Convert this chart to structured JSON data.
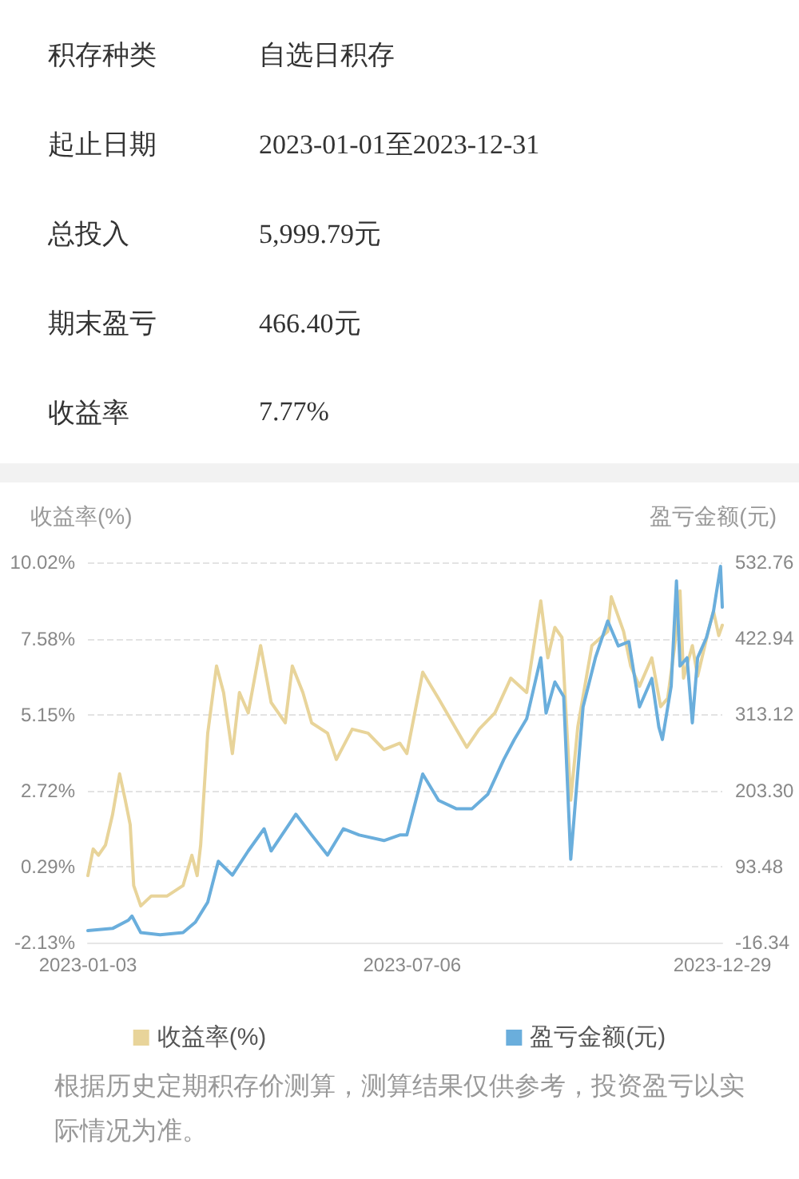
{
  "chart_data": [
    {
      "type": "other",
      "annotations": [
        "积存种类",
        "自选日积存",
        "起止日期",
        "2023-01-01至2023-12-31",
        "总投入",
        "5,999.79元",
        "期末盈亏",
        "466.40元",
        "收益率",
        "7.77%"
      ]
    },
    {
      "type": "line",
      "ylabel": "收益率(%)",
      "y2label": "盈亏金额(元)",
      "xlim": [
        "2023-01-03",
        "2023-12-29"
      ],
      "xticks": [
        "2023-01-03",
        "2023-07-06",
        "2023-12-29"
      ],
      "ylim": [
        -2.13,
        10.02
      ],
      "yticks": [
        {
          "value": -2.13,
          "label": "-2.13%"
        },
        {
          "value": 0.29,
          "label": "0.29%"
        },
        {
          "value": 2.72,
          "label": "2.72%"
        },
        {
          "value": 5.15,
          "label": "5.15%"
        },
        {
          "value": 7.58,
          "label": "7.58%"
        },
        {
          "value": 10.02,
          "label": "10.02%"
        }
      ],
      "y2lim": [
        -16.34,
        532.76
      ],
      "y2ticks": [
        -16.34,
        93.48,
        {
          "value": 203.3,
          "label": "203.30"
        },
        313.12,
        422.94,
        532.76
      ],
      "grid": "y",
      "legend": "bottom",
      "marker": "none",
      "line_style": "solid",
      "annotations": [
        "根据历史定期积存价测算，测算结果仅供参考，投资盈亏以实际情况为准。"
      ],
      "series": [
        {
          "name": "收益率(%)",
          "color": "#e8d49a",
          "x": [
            "2023-01-03",
            "2023-01-06",
            "2023-01-09",
            "2023-01-13",
            "2023-01-17",
            "2023-01-21",
            "2023-01-24",
            "2023-01-27",
            "2023-01-29",
            "2023-02-02",
            "2023-02-08",
            "2023-02-17",
            "2023-02-26",
            "2023-03-03",
            "2023-03-06",
            "2023-03-08",
            "2023-03-12",
            "2023-03-17",
            "2023-03-21",
            "2023-03-26",
            "2023-03-30",
            "2023-04-04",
            "2023-04-11",
            "2023-04-17",
            "2023-04-25",
            "2023-04-29",
            "2023-05-05",
            "2023-05-10",
            "2023-05-19",
            "2023-05-24",
            "2023-06-02",
            "2023-06-11",
            "2023-06-20",
            "2023-06-29",
            "2023-07-03",
            "2023-07-12",
            "2023-07-21",
            "2023-07-31",
            "2023-08-06",
            "2023-08-13",
            "2023-08-22",
            "2023-08-31",
            "2023-09-09",
            "2023-09-17",
            "2023-09-21",
            "2023-09-25",
            "2023-09-29",
            "2023-10-04",
            "2023-10-08",
            "2023-10-16",
            "2023-10-25",
            "2023-10-27",
            "2023-11-03",
            "2023-11-07",
            "2023-11-12",
            "2023-11-19",
            "2023-11-24",
            "2023-11-28",
            "2023-12-02",
            "2023-12-05",
            "2023-12-07",
            "2023-12-12",
            "2023-12-15",
            "2023-12-21",
            "2023-12-24",
            "2023-12-27",
            "2023-12-29"
          ],
          "values": [
            0.01,
            0.86,
            0.66,
            0.99,
            1.96,
            3.26,
            2.48,
            1.64,
            -0.31,
            -0.96,
            -0.64,
            -0.64,
            -0.31,
            0.66,
            0.01,
            0.99,
            4.56,
            6.71,
            5.86,
            3.91,
            5.86,
            5.21,
            7.36,
            5.54,
            4.89,
            6.71,
            5.86,
            4.89,
            4.56,
            3.72,
            4.69,
            4.56,
            4.04,
            4.24,
            3.91,
            6.51,
            5.67,
            4.69,
            4.11,
            4.69,
            5.21,
            6.32,
            5.86,
            8.79,
            6.97,
            7.94,
            7.62,
            2.42,
            4.76,
            7.36,
            7.81,
            8.92,
            7.81,
            6.71,
            6.06,
            6.97,
            5.41,
            5.67,
            7.36,
            9.11,
            6.32,
            7.36,
            6.38,
            7.81,
            8.46,
            7.68,
            8.01
          ]
        },
        {
          "name": "盈亏金额(元)",
          "color": "#6aaedc",
          "axis": "y2",
          "x": [
            "2023-01-03",
            "2023-01-17",
            "2023-01-26",
            "2023-01-28",
            "2023-02-02",
            "2023-02-13",
            "2023-02-26",
            "2023-03-05",
            "2023-03-12",
            "2023-03-18",
            "2023-03-26",
            "2023-04-04",
            "2023-04-13",
            "2023-04-17",
            "2023-05-01",
            "2023-05-10",
            "2023-05-19",
            "2023-05-28",
            "2023-06-06",
            "2023-06-20",
            "2023-06-29",
            "2023-07-03",
            "2023-07-12",
            "2023-07-21",
            "2023-07-31",
            "2023-08-09",
            "2023-08-18",
            "2023-08-27",
            "2023-09-02",
            "2023-09-09",
            "2023-09-17",
            "2023-09-20",
            "2023-09-25",
            "2023-09-30",
            "2023-10-04",
            "2023-10-08",
            "2023-10-11",
            "2023-10-18",
            "2023-10-25",
            "2023-10-31",
            "2023-11-06",
            "2023-11-12",
            "2023-11-19",
            "2023-11-23",
            "2023-11-25",
            "2023-11-30",
            "2023-12-03",
            "2023-12-05",
            "2023-12-09",
            "2023-12-12",
            "2023-12-15",
            "2023-12-20",
            "2023-12-24",
            "2023-12-28",
            "2023-12-29"
          ],
          "values": [
            1,
            4,
            16,
            22,
            -2,
            -5,
            -2,
            13,
            42,
            101,
            81,
            116,
            148,
            116,
            169,
            139,
            110,
            148,
            139,
            131,
            139,
            139,
            227,
            189,
            177,
            177,
            198,
            248,
            277,
            307,
            395,
            315,
            360,
            339,
            104,
            230,
            324,
            395,
            448,
            412,
            418,
            324,
            365,
            295,
            277,
            354,
            506,
            383,
            395,
            301,
            395,
            424,
            462,
            527,
            468
          ]
        }
      ]
    }
  ]
}
